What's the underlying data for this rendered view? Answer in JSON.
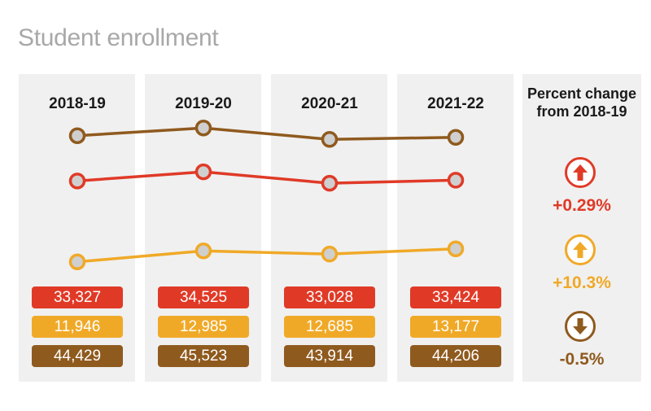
{
  "title": "Student enrollment",
  "colors": {
    "total": "#8f5a1e",
    "red": "#e03a27",
    "gold": "#f0a927"
  },
  "change": {
    "heading": "Percent change from 2018-19",
    "red": {
      "value": "+0.29%",
      "direction": "up",
      "icon": "arrow-up-icon"
    },
    "gold": {
      "value": "+10.3%",
      "direction": "up",
      "icon": "arrow-up-icon"
    },
    "total": {
      "value": "-0.5%",
      "direction": "down",
      "icon": "arrow-down-icon"
    }
  },
  "chart_data": {
    "type": "line",
    "categories": [
      "2018-19",
      "2019-20",
      "2020-21",
      "2021-22"
    ],
    "series": [
      {
        "key": "red",
        "color": "#e03a27",
        "values": [
          33327,
          34525,
          33028,
          33424
        ],
        "labels": [
          "33,327",
          "34,525",
          "33,028",
          "33,424"
        ]
      },
      {
        "key": "gold",
        "color": "#f0a927",
        "values": [
          11946,
          12985,
          12685,
          13177
        ],
        "labels": [
          "11,946",
          "12,985",
          "12,685",
          "13,177"
        ]
      },
      {
        "key": "total",
        "color": "#8f5a1e",
        "values": [
          44429,
          45523,
          43914,
          44206
        ],
        "labels": [
          "44,429",
          "45,523",
          "43,914",
          "44,206"
        ]
      }
    ],
    "grid": false
  }
}
